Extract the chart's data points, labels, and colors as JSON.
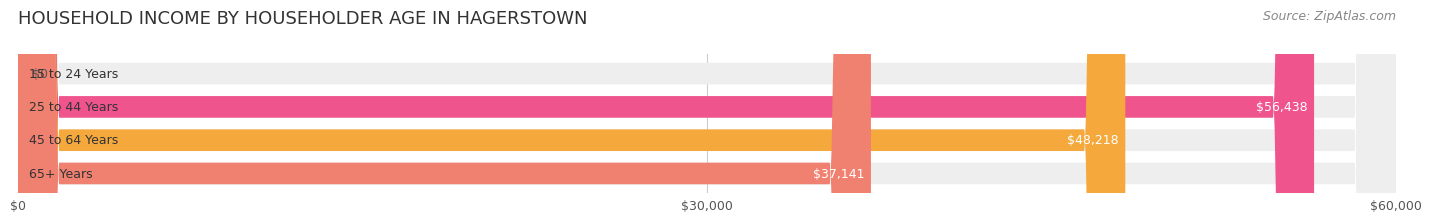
{
  "title": "HOUSEHOLD INCOME BY HOUSEHOLDER AGE IN HAGERSTOWN",
  "source": "Source: ZipAtlas.com",
  "categories": [
    "15 to 24 Years",
    "25 to 44 Years",
    "45 to 64 Years",
    "65+ Years"
  ],
  "values": [
    0,
    56438,
    48218,
    37141
  ],
  "labels": [
    "$0",
    "$56,438",
    "$48,218",
    "$37,141"
  ],
  "bar_colors": [
    "#a8a8d8",
    "#f0548c",
    "#f5a93c",
    "#f08070"
  ],
  "bar_bg_color": "#eeeeee",
  "xlim": [
    0,
    60000
  ],
  "xticks": [
    0,
    30000,
    60000
  ],
  "xticklabels": [
    "$0",
    "$30,000",
    "$60,000"
  ],
  "title_fontsize": 13,
  "source_fontsize": 9,
  "label_fontsize": 9,
  "tick_fontsize": 9,
  "category_fontsize": 9,
  "bar_height": 0.65,
  "figure_bg": "#ffffff"
}
